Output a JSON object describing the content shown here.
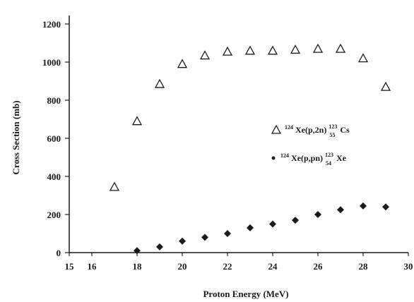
{
  "chart_data": {
    "type": "scatter",
    "xlabel": "Proton Energy (MeV)",
    "ylabel": "Cross Section (mb)",
    "xlim": [
      15,
      30
    ],
    "ylim": [
      0,
      1200
    ],
    "x_ticks": [
      "15",
      "16",
      "18",
      "20",
      "22",
      "24",
      "26",
      "28",
      "30"
    ],
    "y_ticks": [
      "0",
      "200",
      "400",
      "600",
      "800",
      "1000",
      "1200"
    ],
    "grid": false,
    "legend_position": "right",
    "series": [
      {
        "name_parts": {
          "sup1": "124",
          "base1": "Xe(p,2n)",
          "sup2": "123",
          "sub2": "55",
          "base2": "Cs"
        },
        "marker": "open-triangle",
        "color": "#1a1a1a",
        "x": [
          17,
          18,
          19,
          20,
          21,
          22,
          23,
          24,
          25,
          26,
          27,
          28,
          29
        ],
        "y": [
          345,
          690,
          885,
          990,
          1035,
          1055,
          1060,
          1060,
          1065,
          1070,
          1070,
          1020,
          870
        ]
      },
      {
        "name_parts": {
          "sup1": "124",
          "base1": "Xe(p,pn)",
          "sup2": "123",
          "sub2": "54",
          "base2": "Xe"
        },
        "marker": "filled-diamond",
        "color": "#1a1a1a",
        "x": [
          18,
          19,
          20,
          21,
          22,
          23,
          24,
          25,
          26,
          27,
          28,
          29
        ],
        "y": [
          10,
          30,
          60,
          80,
          100,
          130,
          150,
          170,
          200,
          225,
          245,
          240
        ]
      }
    ]
  }
}
